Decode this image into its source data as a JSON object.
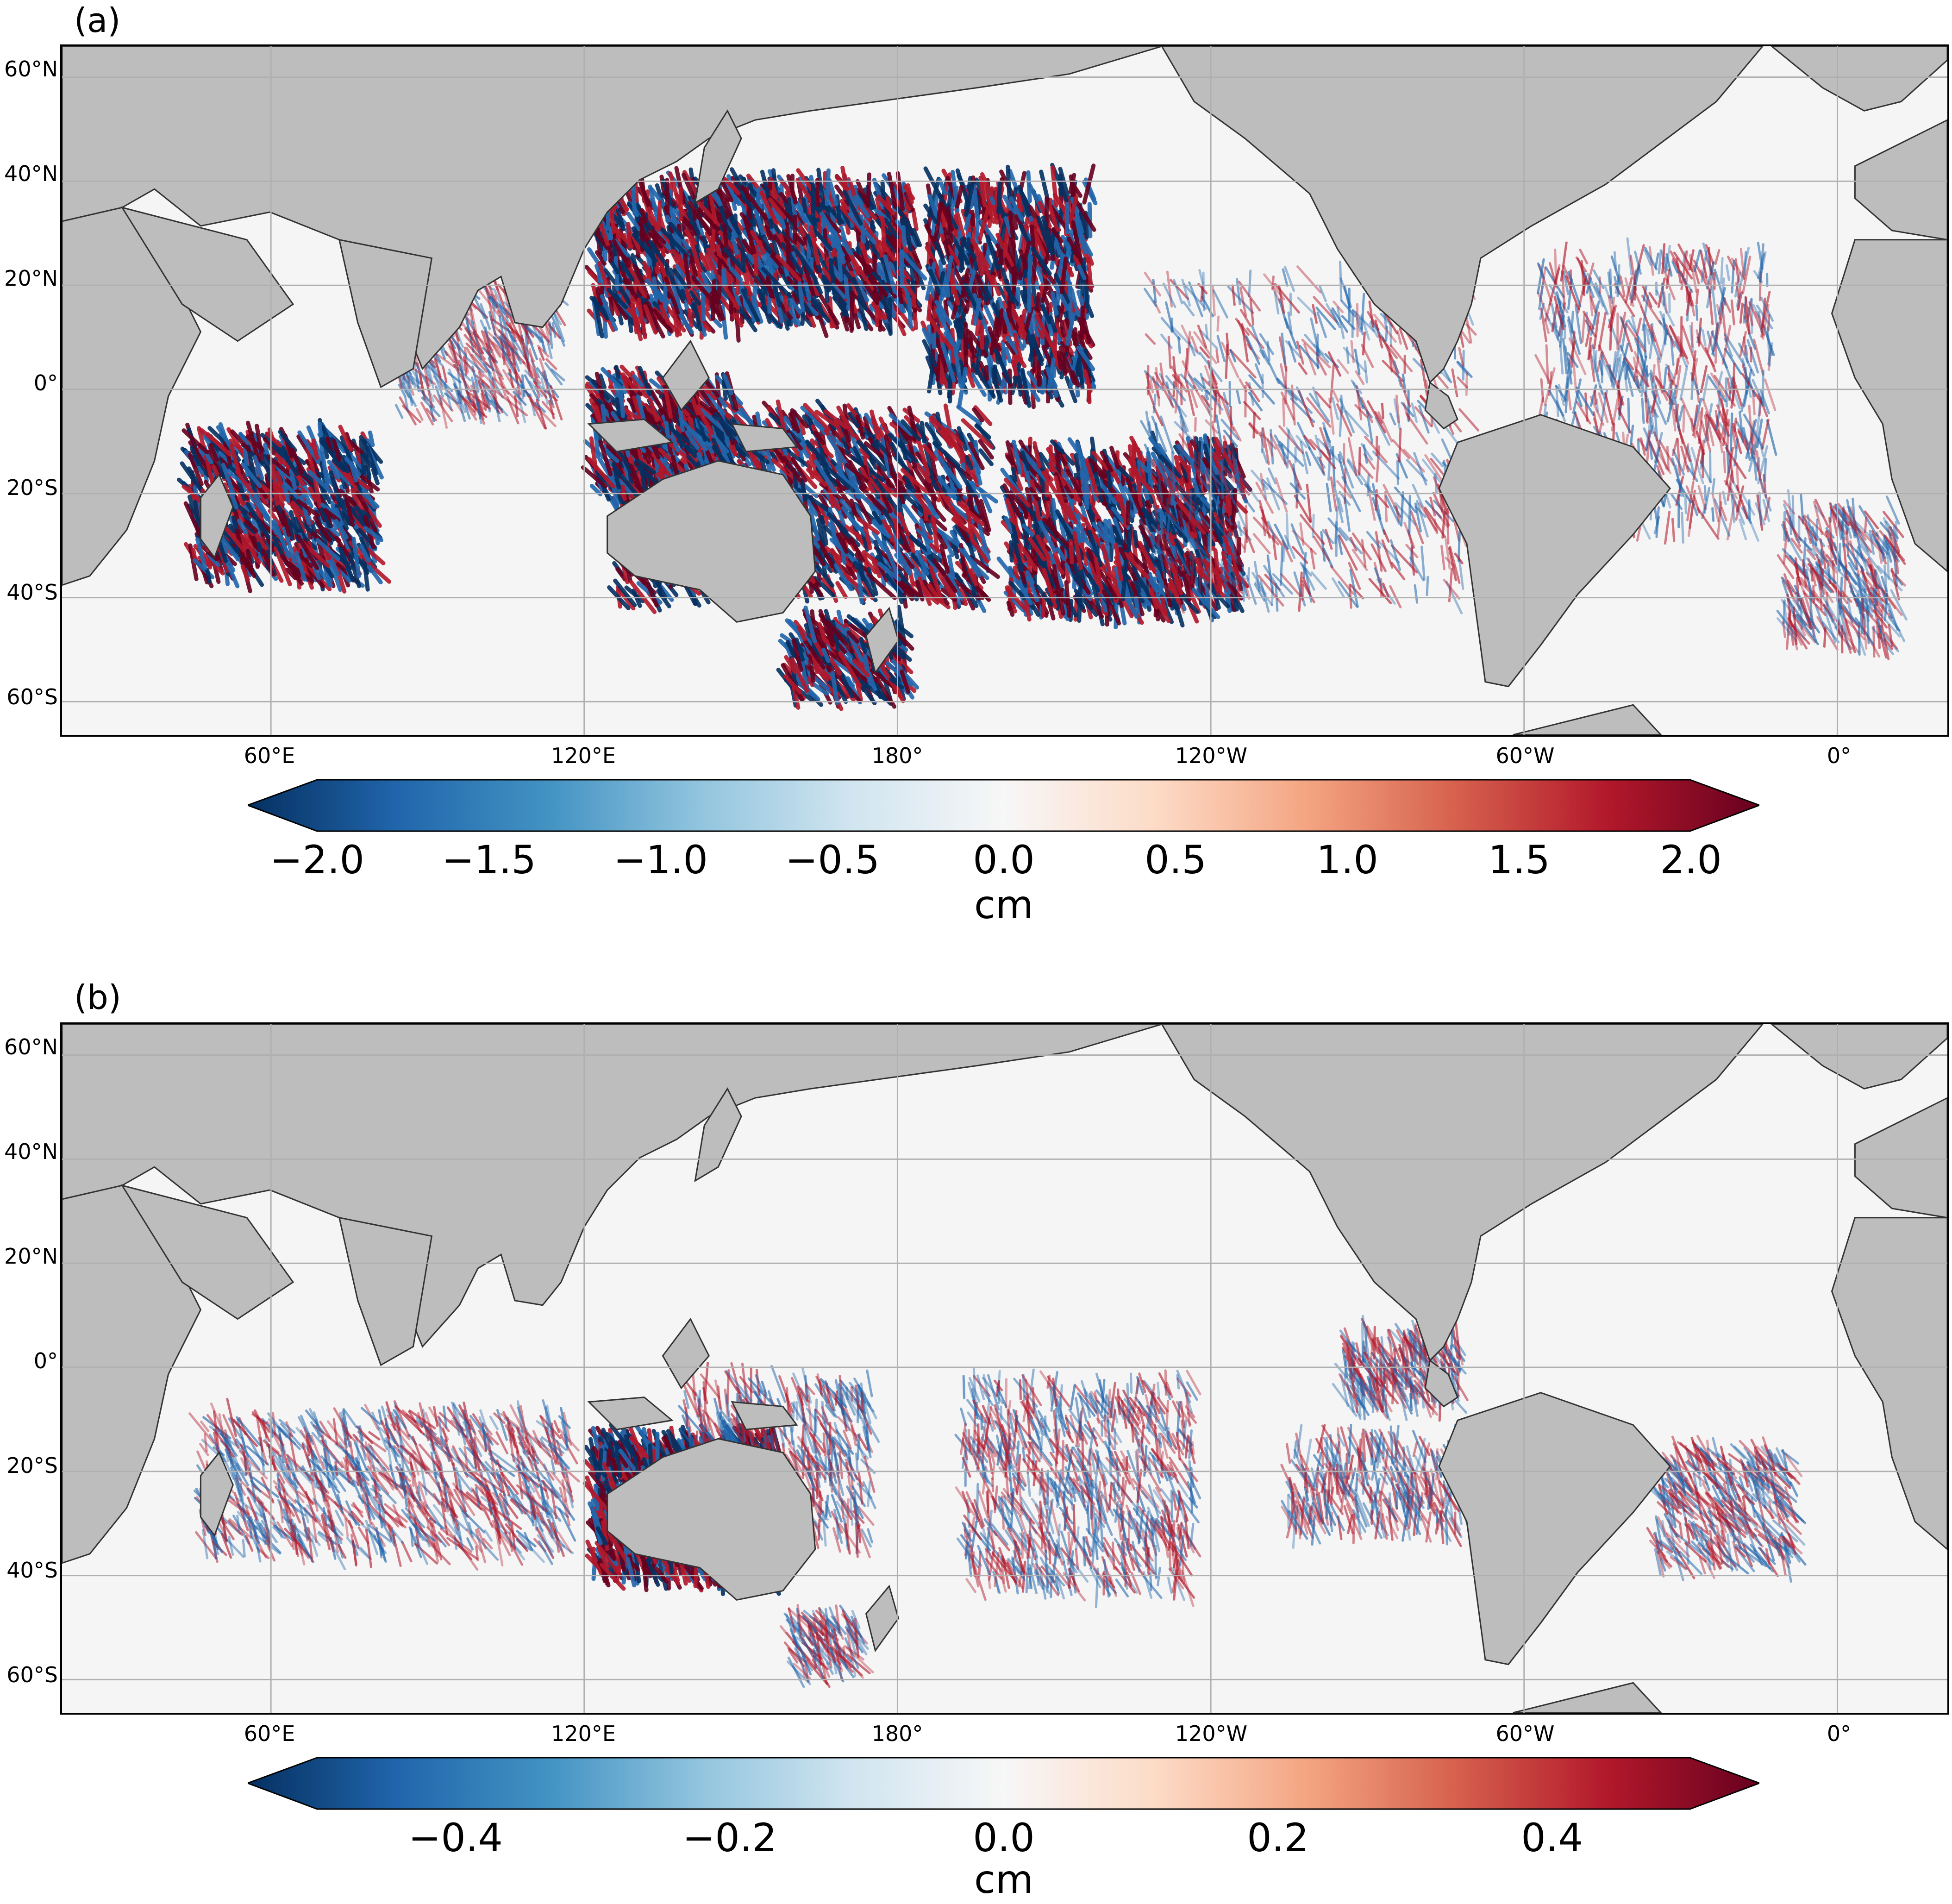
{
  "panels": [
    {
      "label": "(a)",
      "lat_labels": [
        "60°N",
        "40°N",
        "20°N",
        "0°",
        "20°S",
        "40°S",
        "60°S"
      ],
      "lon_labels": [
        "60°E",
        "120°E",
        "180°",
        "120°W",
        "60°W",
        "0°"
      ],
      "colorbar": {
        "ticks": [
          "−2.0",
          "−1.5",
          "−1.0",
          "−0.5",
          "0.0",
          "0.5",
          "1.0",
          "1.5",
          "2.0"
        ],
        "range": [
          -2.0,
          2.0
        ],
        "units": "cm"
      }
    },
    {
      "label": "(b)",
      "lat_labels": [
        "60°N",
        "40°N",
        "20°N",
        "0°",
        "20°S",
        "40°S",
        "60°S"
      ],
      "lon_labels": [
        "60°E",
        "120°E",
        "180°",
        "120°W",
        "60°W",
        "0°"
      ],
      "colorbar": {
        "ticks": [
          "−0.4",
          "−0.2",
          "0.0",
          "0.2",
          "0.4"
        ],
        "range": [
          -0.5,
          0.5
        ],
        "units": "cm"
      }
    }
  ],
  "colormap": {
    "name": "RdBu_r",
    "stops": [
      "#053061",
      "#2166ac",
      "#4393c3",
      "#92c5de",
      "#d1e5f0",
      "#f7f7f7",
      "#fddbc7",
      "#f4a582",
      "#d6604d",
      "#b2182b",
      "#67001f"
    ]
  },
  "colors": {
    "land": "#bdbdbd",
    "ocean": "#f5f5f5",
    "grid": "#b0b0b0"
  }
}
